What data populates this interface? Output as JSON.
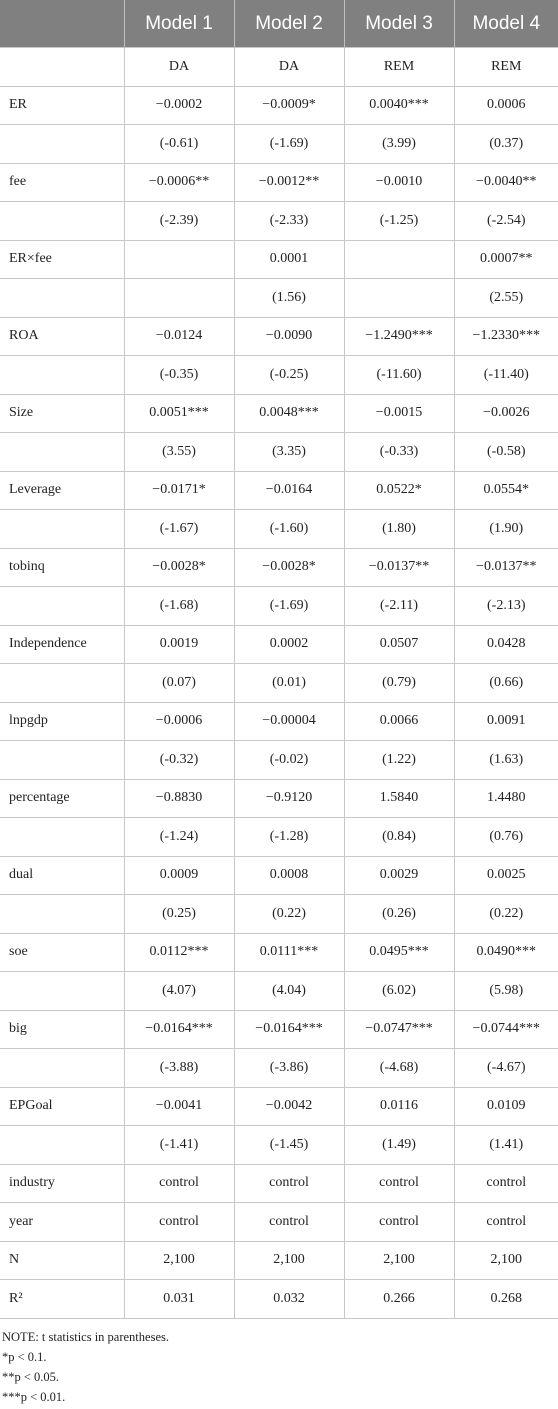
{
  "table": {
    "header": [
      null,
      "Model 1",
      "Model 2",
      "Model 3",
      "Model 4"
    ],
    "rows": [
      [
        null,
        "DA",
        "DA",
        "REM",
        "REM"
      ],
      [
        "ER",
        "−0.0002",
        "−0.0009*",
        "0.0040***",
        "0.0006"
      ],
      [
        null,
        "(-0.61)",
        "(-1.69)",
        "(3.99)",
        "(0.37)"
      ],
      [
        "fee",
        "−0.0006**",
        "−0.0012**",
        "−0.0010",
        "−0.0040**"
      ],
      [
        null,
        "(-2.39)",
        "(-2.33)",
        "(-1.25)",
        "(-2.54)"
      ],
      [
        "ER×fee",
        null,
        "0.0001",
        null,
        "0.0007**"
      ],
      [
        null,
        null,
        "(1.56)",
        null,
        "(2.55)"
      ],
      [
        "ROA",
        "−0.0124",
        "−0.0090",
        "−1.2490***",
        "−1.2330***"
      ],
      [
        null,
        "(-0.35)",
        "(-0.25)",
        "(-11.60)",
        "(-11.40)"
      ],
      [
        "Size",
        "0.0051***",
        "0.0048***",
        "−0.0015",
        "−0.0026"
      ],
      [
        null,
        "(3.55)",
        "(3.35)",
        "(-0.33)",
        "(-0.58)"
      ],
      [
        "Leverage",
        "−0.0171*",
        "−0.0164",
        "0.0522*",
        "0.0554*"
      ],
      [
        null,
        "(-1.67)",
        "(-1.60)",
        "(1.80)",
        "(1.90)"
      ],
      [
        "tobinq",
        "−0.0028*",
        "−0.0028*",
        "−0.0137**",
        "−0.0137**"
      ],
      [
        null,
        "(-1.68)",
        "(-1.69)",
        "(-2.11)",
        "(-2.13)"
      ],
      [
        "Independence",
        "0.0019",
        "0.0002",
        "0.0507",
        "0.0428"
      ],
      [
        null,
        "(0.07)",
        "(0.01)",
        "(0.79)",
        "(0.66)"
      ],
      [
        "lnpgdp",
        "−0.0006",
        "−0.00004",
        "0.0066",
        "0.0091"
      ],
      [
        null,
        "(-0.32)",
        "(-0.02)",
        "(1.22)",
        "(1.63)"
      ],
      [
        "percentage",
        "−0.8830",
        "−0.9120",
        "1.5840",
        "1.4480"
      ],
      [
        null,
        "(-1.24)",
        "(-1.28)",
        "(0.84)",
        "(0.76)"
      ],
      [
        "dual",
        "0.0009",
        "0.0008",
        "0.0029",
        "0.0025"
      ],
      [
        null,
        "(0.25)",
        "(0.22)",
        "(0.26)",
        "(0.22)"
      ],
      [
        "soe",
        "0.0112***",
        "0.0111***",
        "0.0495***",
        "0.0490***"
      ],
      [
        null,
        "(4.07)",
        "(4.04)",
        "(6.02)",
        "(5.98)"
      ],
      [
        "big",
        "−0.0164***",
        "−0.0164***",
        "−0.0747***",
        "−0.0744***"
      ],
      [
        null,
        "(-3.88)",
        "(-3.86)",
        "(-4.68)",
        "(-4.67)"
      ],
      [
        "EPGoal",
        "−0.0041",
        "−0.0042",
        "0.0116",
        "0.0109"
      ],
      [
        null,
        "(-1.41)",
        "(-1.45)",
        "(1.49)",
        "(1.41)"
      ],
      [
        "industry",
        "control",
        "control",
        "control",
        "control"
      ],
      [
        "year",
        "control",
        "control",
        "control",
        "control"
      ],
      [
        "N",
        "2,100",
        "2,100",
        "2,100",
        "2,100"
      ],
      [
        "R²",
        "0.031",
        "0.032",
        "0.266",
        "0.268"
      ]
    ]
  },
  "notes": [
    "NOTE: t statistics in parentheses.",
    "*p < 0.1.",
    "**p < 0.05.",
    "***p < 0.01."
  ]
}
